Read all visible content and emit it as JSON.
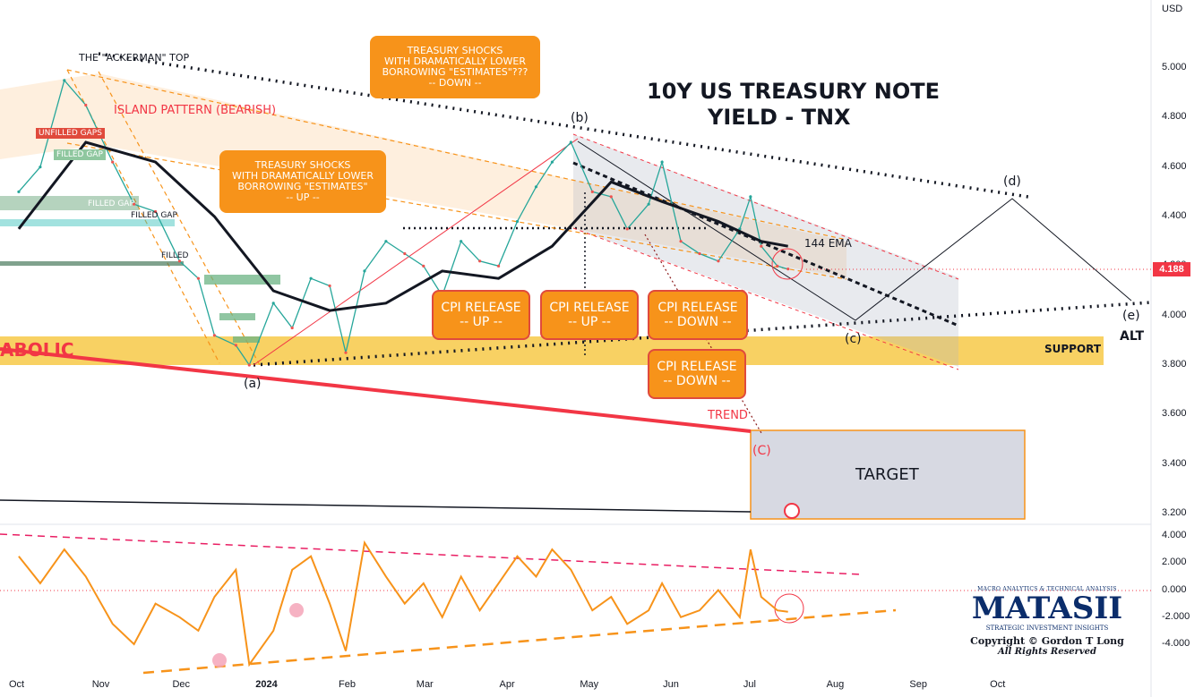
{
  "title": {
    "line1": "10Y US TREASURY NOTE",
    "line2": "YIELD - TNX"
  },
  "currency": "USD",
  "price_tag": "4.188",
  "annotations": {
    "ackerman_top": "THE \"ACKERMAN\" TOP",
    "island": "ISLAND PATTERN (BEARISH)",
    "unfilled": "UNFILLED GAPS",
    "filled_gap_1": "FILLED GAP",
    "filled_gap_2": "FILLED GAP",
    "filled_gap_3": "FILLED GAP",
    "filled_gap_4": "FILLED",
    "parabolic": "ABOLIC",
    "ema": "144 EMA",
    "support": "SUPPORT",
    "trend": "TREND",
    "target": "TARGET",
    "alt": "ALT",
    "wave_a": "(a)",
    "wave_b": "(b)",
    "wave_c": "(c)",
    "wave_d": "(d)",
    "wave_e": "(e)",
    "wave_C": "(C)"
  },
  "callouts": {
    "shock_down": [
      "TREASURY SHOCKS",
      "WITH DRAMATICALLY LOWER",
      "BORROWING \"ESTIMATES\"???",
      "-- DOWN --"
    ],
    "shock_up": [
      "TREASURY SHOCKS",
      "WITH DRAMATICALLY LOWER",
      "BORROWING \"ESTIMATES\"",
      "-- UP --"
    ],
    "cpi1": [
      "CPI RELEASE",
      "-- UP --"
    ],
    "cpi2": [
      "CPI RELEASE",
      "-- UP --"
    ],
    "cpi3": [
      "CPI RELEASE",
      "-- DOWN --"
    ],
    "cpi4": [
      "CPI RELEASE",
      "-- DOWN --"
    ]
  },
  "logo": {
    "top": "MACRO ANALYTICS & TECHNICAL ANALYSIS",
    "name": "MATASII",
    "sub": "STRATEGIC INVESTMENT INSIGHTS",
    "copyright": "Copyright © Gordon T Long",
    "rights": "All Rights Reserved"
  },
  "chart_data": {
    "type": "line",
    "x_ticks": [
      "Oct",
      "Nov",
      "Dec",
      "2024",
      "Feb",
      "Mar",
      "Apr",
      "May",
      "Jun",
      "Jul",
      "Aug",
      "Sep",
      "Oct"
    ],
    "y_ticks": [
      "5.000",
      "4.800",
      "4.600",
      "4.400",
      "4.200",
      "4.000",
      "3.800",
      "3.600",
      "3.400",
      "3.200"
    ],
    "ylim": [
      3.15,
      5.2
    ],
    "oscillator_ticks": [
      "4.000",
      "2.000",
      "0.000",
      "-2.000",
      "-4.000"
    ],
    "oscillator_ylim": [
      -5.8,
      4.4
    ],
    "series": [
      {
        "name": "TNX",
        "x": [
          "2023-10-02",
          "2023-10-10",
          "2023-10-19",
          "2023-10-27",
          "2023-11-06",
          "2023-11-14",
          "2023-11-22",
          "2023-12-01",
          "2023-12-08",
          "2023-12-14",
          "2023-12-22",
          "2023-12-27",
          "2024-01-05",
          "2024-01-12",
          "2024-01-19",
          "2024-01-26",
          "2024-02-01",
          "2024-02-08",
          "2024-02-16",
          "2024-02-23",
          "2024-03-01",
          "2024-03-08",
          "2024-03-15",
          "2024-03-22",
          "2024-03-29",
          "2024-04-05",
          "2024-04-12",
          "2024-04-18",
          "2024-04-25",
          "2024-05-03",
          "2024-05-10",
          "2024-05-16",
          "2024-05-24",
          "2024-05-29",
          "2024-06-05",
          "2024-06-12",
          "2024-06-19",
          "2024-06-27",
          "2024-07-01",
          "2024-07-05",
          "2024-07-11",
          "2024-07-15"
        ],
        "values": [
          4.5,
          4.6,
          4.95,
          4.85,
          4.62,
          4.45,
          4.42,
          4.22,
          4.15,
          3.92,
          3.88,
          3.8,
          4.05,
          3.95,
          4.15,
          4.12,
          3.85,
          4.18,
          4.3,
          4.25,
          4.2,
          4.08,
          4.3,
          4.22,
          4.2,
          4.38,
          4.52,
          4.62,
          4.7,
          4.5,
          4.48,
          4.35,
          4.45,
          4.62,
          4.3,
          4.25,
          4.22,
          4.35,
          4.48,
          4.28,
          4.2,
          4.188
        ]
      },
      {
        "name": "144 EMA",
        "x": [
          "2023-10-02",
          "2023-10-27",
          "2023-11-22",
          "2023-12-14",
          "2024-01-05",
          "2024-01-26",
          "2024-02-16",
          "2024-03-08",
          "2024-03-29",
          "2024-04-18",
          "2024-05-10",
          "2024-05-29",
          "2024-06-19",
          "2024-07-05",
          "2024-07-15"
        ],
        "values": [
          4.35,
          4.7,
          4.62,
          4.4,
          4.1,
          4.02,
          4.05,
          4.18,
          4.15,
          4.28,
          4.54,
          4.46,
          4.38,
          4.3,
          4.28
        ]
      }
    ],
    "oscillator": {
      "x": [
        "2023-10-02",
        "2023-10-10",
        "2023-10-19",
        "2023-10-27",
        "2023-11-06",
        "2023-11-14",
        "2023-11-22",
        "2023-12-01",
        "2023-12-08",
        "2023-12-14",
        "2023-12-22",
        "2023-12-27",
        "2024-01-05",
        "2024-01-12",
        "2024-01-19",
        "2024-01-26",
        "2024-02-01",
        "2024-02-08",
        "2024-02-16",
        "2024-02-23",
        "2024-03-01",
        "2024-03-08",
        "2024-03-15",
        "2024-03-22",
        "2024-03-29",
        "2024-04-05",
        "2024-04-12",
        "2024-04-18",
        "2024-04-25",
        "2024-05-03",
        "2024-05-10",
        "2024-05-16",
        "2024-05-24",
        "2024-05-29",
        "2024-06-05",
        "2024-06-12",
        "2024-06-19",
        "2024-06-27",
        "2024-07-01",
        "2024-07-05",
        "2024-07-11",
        "2024-07-15"
      ],
      "values": [
        2.5,
        0.5,
        3.0,
        1.0,
        -2.5,
        -4.0,
        -1.0,
        -2.0,
        -3.0,
        -0.5,
        1.5,
        -5.5,
        -3.0,
        1.5,
        2.5,
        -1.0,
        -4.5,
        3.5,
        1.0,
        -1.0,
        0.5,
        -2.0,
        1.0,
        -1.5,
        0.5,
        2.5,
        1.0,
        3.0,
        1.5,
        -1.5,
        -0.5,
        -2.5,
        -1.5,
        0.5,
        -2.0,
        -1.5,
        0.0,
        -2.0,
        3.0,
        -0.5,
        -1.5,
        -1.6
      ]
    }
  }
}
